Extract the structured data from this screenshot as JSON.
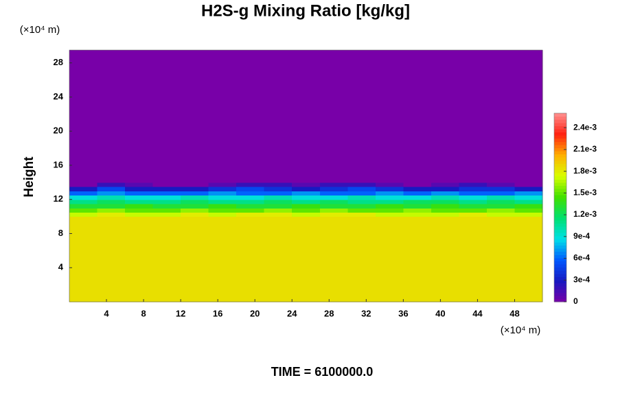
{
  "chart_data": {
    "type": "heatmap",
    "title": "H2S-g Mixing Ratio [kg/kg]",
    "ylabel": "Height",
    "y_unit": "(×10⁴ m)",
    "x_unit": "(×10⁴ m)",
    "footer": "TIME = 6100000.0",
    "xlim": [
      0,
      51
    ],
    "ylim": [
      0,
      29.5
    ],
    "xticks": [
      4,
      8,
      12,
      16,
      20,
      24,
      28,
      32,
      36,
      40,
      44,
      48
    ],
    "yticks": [
      4,
      8,
      12,
      16,
      20,
      24,
      28
    ],
    "x_bins": [
      0,
      3,
      6,
      9,
      12,
      15,
      18,
      21,
      24,
      27,
      30,
      33,
      36,
      39,
      42,
      45,
      48,
      51
    ],
    "y_bins": [
      0,
      10,
      10.5,
      11,
      11.5,
      12,
      12.5,
      13,
      13.5,
      14,
      29.5
    ],
    "z": [
      [
        0.00185,
        0.00185,
        0.00185,
        0.00185,
        0.00185,
        0.00185,
        0.00185,
        0.00185,
        0.00185,
        0.00185,
        0.00185,
        0.00185,
        0.00185,
        0.00185,
        0.00185,
        0.00185,
        0.00185
      ],
      [
        0.0017,
        0.0018,
        0.0017,
        0.0017,
        0.0018,
        0.0017,
        0.0018,
        0.0018,
        0.0017,
        0.0018,
        0.0018,
        0.0017,
        0.0017,
        0.0017,
        0.0018,
        0.0017,
        0.0017
      ],
      [
        0.0015,
        0.0016,
        0.0015,
        0.0015,
        0.0016,
        0.0015,
        0.0015,
        0.0016,
        0.0015,
        0.0016,
        0.0015,
        0.0015,
        0.0016,
        0.0015,
        0.0015,
        0.0016,
        0.0015
      ],
      [
        0.0013,
        0.0013,
        0.0014,
        0.0013,
        0.0013,
        0.0014,
        0.0013,
        0.0013,
        0.0014,
        0.0013,
        0.0013,
        0.0014,
        0.0013,
        0.0014,
        0.0013,
        0.0013,
        0.0014
      ],
      [
        0.0011,
        0.0012,
        0.0011,
        0.0011,
        0.0012,
        0.0011,
        0.0011,
        0.0012,
        0.0011,
        0.0012,
        0.0011,
        0.0011,
        0.0012,
        0.0012,
        0.0011,
        0.0012,
        0.0011
      ],
      [
        0.0009,
        0.001,
        0.0009,
        0.0009,
        0.001,
        0.0009,
        0.0009,
        0.001,
        0.0009,
        0.0009,
        0.001,
        0.0009,
        0.0009,
        0.001,
        0.0009,
        0.001,
        0.0009
      ],
      [
        0.0006,
        0.0007,
        0.0006,
        0.0006,
        0.0006,
        0.0007,
        0.0006,
        0.0006,
        0.0007,
        0.0006,
        0.0006,
        0.0007,
        0.0006,
        0.0007,
        0.0006,
        0.0006,
        0.0007
      ],
      [
        0.0003,
        0.0005,
        0.0003,
        0.0003,
        0.0003,
        0.0004,
        0.0005,
        0.0004,
        0.0003,
        0.0004,
        0.0005,
        0.0004,
        0.0003,
        0.0003,
        0.0004,
        0.0004,
        0.0003
      ],
      [
        0,
        0.0002,
        0.0001,
        0,
        0,
        0.0001,
        0.0002,
        0.0002,
        0.0001,
        0.0002,
        0.0002,
        0.0001,
        0,
        0.0001,
        0.0002,
        0.0001,
        0
      ],
      [
        0,
        0,
        0,
        0,
        0,
        0,
        0,
        0,
        0,
        0,
        0,
        0,
        0,
        0,
        0,
        0,
        0
      ]
    ],
    "clim": [
      0,
      0.0026
    ],
    "colormap": [
      "#7800a8",
      "#1818c0",
      "#0058ff",
      "#00e0e8",
      "#00e070",
      "#40e000",
      "#d8ff00",
      "#ffb000",
      "#ff2010",
      "#ff9090"
    ],
    "cticks": [
      0,
      {
        "value": 0.0003,
        "label": "3e-4"
      },
      {
        "value": 0.0006,
        "label": "6e-4"
      },
      {
        "value": 0.0009,
        "label": "9e-4"
      },
      {
        "value": 0.0012,
        "label": "1.2e-3"
      },
      {
        "value": 0.0015,
        "label": "1.5e-3"
      },
      {
        "value": 0.0018,
        "label": "1.8e-3"
      },
      {
        "value": 0.0021,
        "label": "2.1e-3"
      },
      {
        "value": 0.0024,
        "label": "2.4e-3"
      }
    ]
  }
}
